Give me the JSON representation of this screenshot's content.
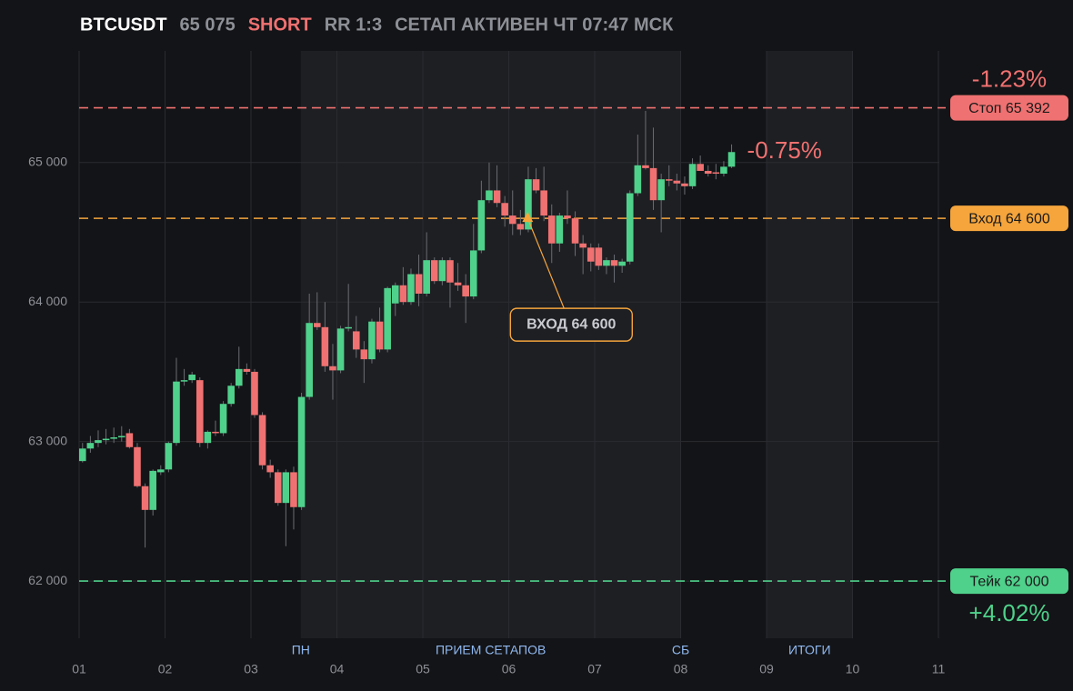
{
  "chart_data": {
    "type": "candlestick",
    "header": {
      "symbol": "BTCUSDT",
      "price": "65 075",
      "side": "SHORT",
      "rr": "RR 1:3",
      "status": "СЕТАП АКТИВЕН ЧТ 07:47 МСК"
    },
    "x": [
      1.04,
      1.131,
      1.222,
      1.313,
      1.404,
      1.495,
      1.586,
      1.677,
      1.768,
      1.859,
      1.95,
      2.041,
      2.132,
      2.223,
      2.314,
      2.405,
      2.496,
      2.587,
      2.678,
      2.769,
      2.86,
      2.951,
      3.042,
      3.133,
      3.224,
      3.315,
      3.406,
      3.497,
      3.588,
      3.679,
      3.77,
      3.861,
      3.952,
      4.043,
      4.134,
      4.225,
      4.316,
      4.407,
      4.498,
      4.589,
      4.68,
      4.771,
      4.862,
      4.953,
      5.044,
      5.135,
      5.226,
      5.317,
      5.408,
      5.499,
      5.59,
      5.681,
      5.772,
      5.863,
      5.954,
      6.045,
      6.136,
      6.227,
      6.318,
      6.409,
      6.5,
      6.591,
      6.682,
      6.773,
      6.864,
      6.955,
      7.046,
      7.137,
      7.228,
      7.319,
      7.41,
      7.501,
      7.592,
      7.683,
      7.774,
      7.865,
      7.956,
      8.047,
      8.138,
      8.229,
      8.32,
      8.411,
      8.502,
      8.593
    ],
    "open": [
      62860,
      62950,
      62990,
      63010,
      63020,
      63030,
      63060,
      62960,
      62680,
      62510,
      62780,
      62800,
      62990,
      63430,
      63440,
      63440,
      62990,
      63070,
      63060,
      63270,
      63400,
      63520,
      63500,
      63190,
      62830,
      62780,
      62560,
      62780,
      62530,
      63320,
      63850,
      63820,
      63540,
      63510,
      63810,
      63790,
      63660,
      63590,
      63860,
      63660,
      63990,
      64120,
      64000,
      64200,
      64060,
      64300,
      64150,
      64300,
      64140,
      64120,
      64040,
      64370,
      64730,
      64800,
      64710,
      64620,
      64560,
      64520,
      64880,
      64800,
      64620,
      64420,
      64620,
      64600,
      64420,
      64390,
      64390,
      64260,
      64300,
      64260,
      64290,
      64780,
      64980,
      64960,
      64730,
      64880,
      64870,
      64850,
      64830,
      64990,
      64940,
      64930,
      64920,
      64970
    ],
    "high": [
      62990,
      63040,
      63080,
      63090,
      63100,
      63110,
      63090,
      62990,
      62700,
      62800,
      62830,
      63000,
      63600,
      63520,
      63500,
      63460,
      63080,
      63150,
      63290,
      63420,
      63680,
      63560,
      63520,
      63210,
      62870,
      62800,
      62800,
      62820,
      63350,
      64060,
      64070,
      64000,
      63700,
      63830,
      64130,
      63900,
      63720,
      63880,
      63960,
      64110,
      64140,
      64250,
      64240,
      64340,
      64500,
      64320,
      64320,
      64320,
      64280,
      64200,
      64560,
      64870,
      65000,
      64980,
      64760,
      64800,
      64660,
      64970,
      64960,
      64970,
      64700,
      64640,
      64800,
      64650,
      64480,
      64420,
      64420,
      64320,
      64340,
      64310,
      64800,
      65200,
      65370,
      65250,
      64920,
      64980,
      64920,
      64900,
      65030,
      65050,
      64980,
      64990,
      65010,
      65130
    ],
    "low": [
      62850,
      62920,
      62960,
      62980,
      62990,
      63000,
      62950,
      62670,
      62240,
      62470,
      62760,
      62780,
      62970,
      63400,
      63420,
      62960,
      62950,
      63040,
      63040,
      63250,
      63380,
      63480,
      63170,
      62800,
      62740,
      62540,
      62250,
      62370,
      62510,
      63300,
      63800,
      63500,
      63300,
      63490,
      63790,
      63600,
      63420,
      63560,
      63640,
      63640,
      63900,
      63980,
      63980,
      63970,
      64040,
      64130,
      64120,
      63960,
      64080,
      63850,
      64020,
      64350,
      64710,
      64680,
      64540,
      64480,
      64480,
      64500,
      64780,
      64580,
      64280,
      64360,
      64560,
      64330,
      64200,
      64220,
      64230,
      64200,
      64140,
      64210,
      64270,
      64760,
      64950,
      64660,
      64500,
      64830,
      64800,
      64770,
      64810,
      64950,
      64900,
      64880,
      64900,
      64960
    ],
    "close": [
      62950,
      62990,
      63010,
      63020,
      63030,
      63040,
      62960,
      62680,
      62510,
      62790,
      62800,
      62990,
      63430,
      63440,
      63480,
      62990,
      63070,
      63060,
      63270,
      63400,
      63520,
      63500,
      63190,
      62830,
      62780,
      62560,
      62780,
      62530,
      63320,
      63850,
      63820,
      63540,
      63510,
      63810,
      63820,
      63660,
      63590,
      63860,
      63660,
      64100,
      64120,
      64000,
      64200,
      64060,
      64300,
      64150,
      64300,
      64140,
      64120,
      64040,
      64370,
      64730,
      64800,
      64710,
      64620,
      64560,
      64520,
      64880,
      64800,
      64620,
      64420,
      64620,
      64600,
      64420,
      64390,
      64290,
      64260,
      64300,
      64260,
      64290,
      64780,
      64980,
      64960,
      64730,
      64880,
      64870,
      64850,
      64830,
      64990,
      64940,
      64920,
      64920,
      64970,
      65075
    ],
    "up_color": "#4fd18b",
    "down_color": "#f07171",
    "xlim": [
      1,
      11
    ],
    "xticks": [
      {
        "value": 1,
        "label": "01"
      },
      {
        "value": 2,
        "label": "02"
      },
      {
        "value": 3,
        "label": "03"
      },
      {
        "value": 4,
        "label": "04"
      },
      {
        "value": 5,
        "label": "05"
      },
      {
        "value": 6,
        "label": "06"
      },
      {
        "value": 7,
        "label": "07"
      },
      {
        "value": 8,
        "label": "08"
      },
      {
        "value": 9,
        "label": "09"
      },
      {
        "value": 10,
        "label": "10"
      },
      {
        "value": 11,
        "label": "11"
      }
    ],
    "ylim": [
      61590,
      65800
    ],
    "yticks": [
      {
        "value": 62000,
        "label": "62 000"
      },
      {
        "value": 63000,
        "label": "63 000"
      },
      {
        "value": 64000,
        "label": "64 000"
      },
      {
        "value": 65000,
        "label": "65 000"
      }
    ],
    "grid": true,
    "regions": [
      {
        "start": 3.58,
        "end": 8
      },
      {
        "start": 9,
        "end": 10
      }
    ],
    "region_labels": [
      {
        "text": "ПН",
        "x": 3.58
      },
      {
        "text": "ПРИЕМ СЕТАПОВ",
        "x": 5.79
      },
      {
        "text": "СБ",
        "x": 8
      },
      {
        "text": "ИТОГИ",
        "x": 9.5
      }
    ],
    "levels": [
      {
        "label": "Стоп 65 392",
        "value": 65392,
        "color": "#f07171",
        "change_label": "-1.23%"
      },
      {
        "label": "Вход 64 600",
        "value": 64600,
        "color": "#f5a53c"
      },
      {
        "label": "Тейк 62 000",
        "value": 62000,
        "color": "#4fd18b",
        "change_label": "+4.02%"
      }
    ],
    "current_change_label": "-0.75%",
    "marker": {
      "x": 6.22,
      "value": 64600,
      "label": "ВХОД 64 600",
      "color": "#f5a53c"
    }
  }
}
